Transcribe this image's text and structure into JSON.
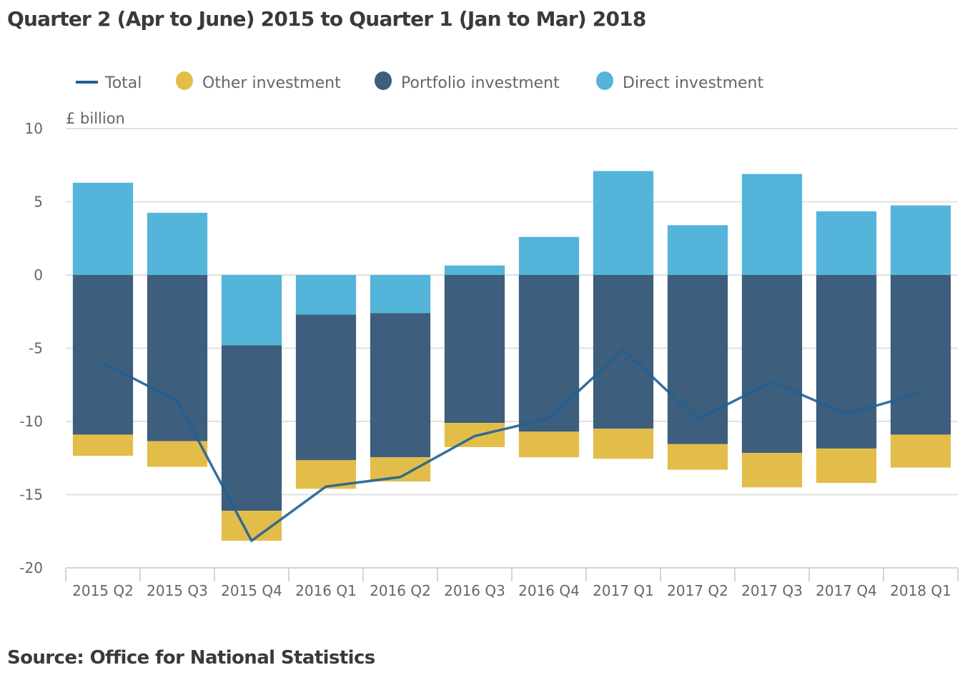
{
  "title": "Quarter 2 (Apr to June) 2015 to Quarter 1 (Jan to Mar) 2018",
  "source": "Source: Office for National Statistics",
  "chart_data": {
    "type": "bar",
    "stacked": true,
    "title": "Quarter 2 (Apr to June) 2015 to Quarter 1 (Jan to Mar) 2018",
    "ylabel": "£ billion",
    "xlabel": "",
    "ylim": [
      -20,
      10
    ],
    "yticks": [
      10,
      5,
      0,
      -5,
      -10,
      -15,
      -20
    ],
    "grid": true,
    "legend_position": "top",
    "categories": [
      "2015 Q2",
      "2015 Q3",
      "2015 Q4",
      "2016 Q1",
      "2016 Q2",
      "2016 Q3",
      "2016 Q4",
      "2017 Q1",
      "2017 Q2",
      "2017 Q3",
      "2017 Q4",
      "2018 Q1"
    ],
    "legend": [
      {
        "name": "Total",
        "kind": "line",
        "color": "#206095"
      },
      {
        "name": "Other investment",
        "kind": "dot",
        "color": "#e3bd4a"
      },
      {
        "name": "Portfolio investment",
        "kind": "dot",
        "color": "#3d5e7c"
      },
      {
        "name": "Direct investment",
        "kind": "dot",
        "color": "#54b4da"
      }
    ],
    "series": [
      {
        "name": "Direct investment",
        "type": "bar",
        "color": "#54b4da",
        "values": [
          6.3,
          4.25,
          -4.8,
          -2.7,
          -2.6,
          0.65,
          2.6,
          7.1,
          3.4,
          6.9,
          4.35,
          4.75
        ]
      },
      {
        "name": "Portfolio investment",
        "type": "bar",
        "color": "#3d5e7c",
        "values": [
          -10.9,
          -11.35,
          -11.3,
          -9.95,
          -9.85,
          -10.1,
          -10.7,
          -10.5,
          -11.55,
          -12.15,
          -11.85,
          -10.9
        ]
      },
      {
        "name": "Other investment",
        "type": "bar",
        "color": "#e3bd4a",
        "values": [
          -1.45,
          -1.75,
          -2.05,
          -1.95,
          -1.65,
          -1.65,
          -1.75,
          -2.05,
          -1.75,
          -2.35,
          -2.35,
          -2.25
        ]
      },
      {
        "name": "Total",
        "type": "line",
        "color": "#206095",
        "values": [
          -6.0,
          -8.6,
          -18.15,
          -14.45,
          -13.8,
          -11.0,
          -9.8,
          -5.1,
          -9.85,
          -7.3,
          -9.5,
          -8.05
        ]
      }
    ]
  }
}
